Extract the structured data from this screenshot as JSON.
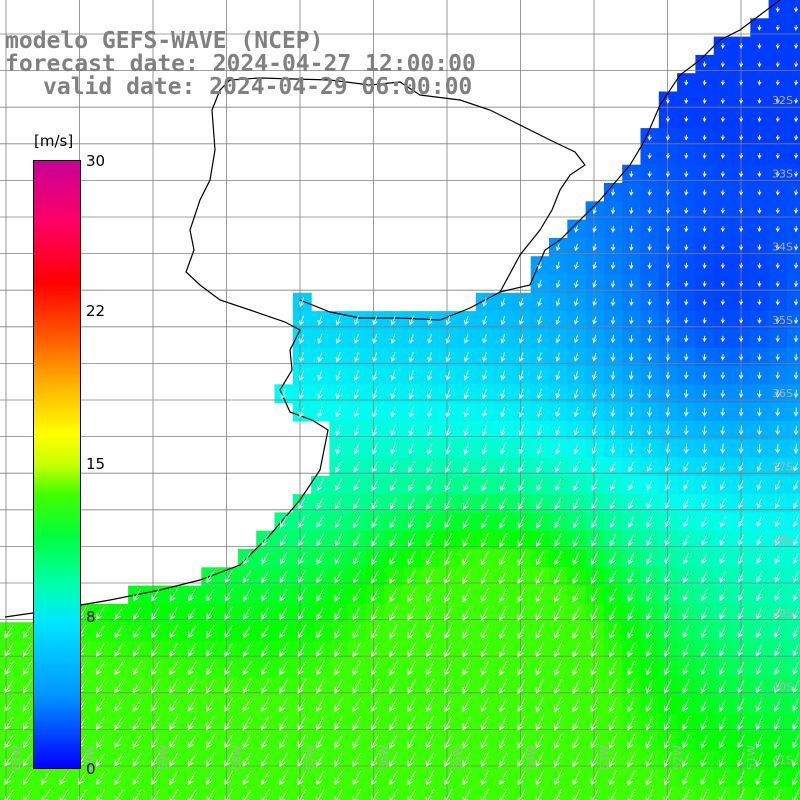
{
  "title": {
    "line1": "modelo GEFS-WAVE (NCEP)",
    "line2": "forecast date: 2024-04-27 12:00:00",
    "line3": "valid date: 2024-04-29 06:00:00"
  },
  "colorbar": {
    "units": "[m/s]",
    "ticks": [
      {
        "label": "30",
        "value": 30
      },
      {
        "label": "22",
        "value": 22
      },
      {
        "label": "15",
        "value": 15
      },
      {
        "label": "8",
        "value": 8
      },
      {
        "label": "0",
        "value": 0
      }
    ],
    "min": 0,
    "max": 30
  },
  "map": {
    "lat_labels": [
      "32S",
      "33S",
      "34S",
      "35S",
      "36S",
      "37S",
      "38S",
      "39S",
      "40S",
      "41S"
    ],
    "lon_labels": [
      "61W",
      "60W",
      "59W",
      "58W",
      "57W",
      "56W",
      "55W",
      "54W",
      "53W",
      "52W",
      "51W"
    ],
    "colors": {
      "land": "#ffffff",
      "coast": "#000000",
      "grid": "#808080",
      "arrow": "#ffffff",
      "label": "#b0b0b0"
    }
  }
}
